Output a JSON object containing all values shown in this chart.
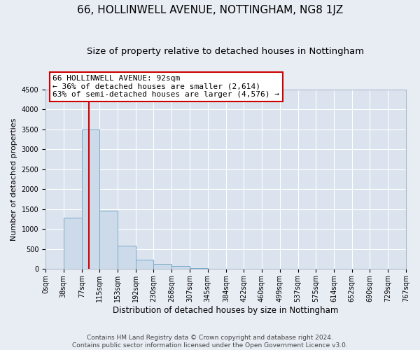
{
  "title": "66, HOLLINWELL AVENUE, NOTTINGHAM, NG8 1JZ",
  "subtitle": "Size of property relative to detached houses in Nottingham",
  "xlabel": "Distribution of detached houses by size in Nottingham",
  "ylabel": "Number of detached properties",
  "bar_edges": [
    0,
    38,
    77,
    115,
    153,
    192,
    230,
    268,
    307,
    345,
    384,
    422,
    460,
    499,
    537,
    575,
    614,
    652,
    690,
    729,
    767
  ],
  "bar_heights": [
    0,
    1280,
    3500,
    1460,
    580,
    240,
    130,
    70,
    25,
    10,
    5,
    2,
    0,
    0,
    0,
    0,
    0,
    0,
    0,
    0
  ],
  "bar_color": "#ccdaea",
  "bar_edgecolor": "#7aaac8",
  "property_size": 92,
  "red_line_color": "#cc0000",
  "annotation_line1": "66 HOLLINWELL AVENUE: 92sqm",
  "annotation_line2": "← 36% of detached houses are smaller (2,614)",
  "annotation_line3": "63% of semi-detached houses are larger (4,576) →",
  "annotation_box_color": "#ffffff",
  "annotation_box_edgecolor": "#cc0000",
  "ylim": [
    0,
    4500
  ],
  "yticks": [
    0,
    500,
    1000,
    1500,
    2000,
    2500,
    3000,
    3500,
    4000,
    4500
  ],
  "tick_labels": [
    "0sqm",
    "38sqm",
    "77sqm",
    "115sqm",
    "153sqm",
    "192sqm",
    "230sqm",
    "268sqm",
    "307sqm",
    "345sqm",
    "384sqm",
    "422sqm",
    "460sqm",
    "499sqm",
    "537sqm",
    "575sqm",
    "614sqm",
    "652sqm",
    "690sqm",
    "729sqm",
    "767sqm"
  ],
  "footer_line1": "Contains HM Land Registry data © Crown copyright and database right 2024.",
  "footer_line2": "Contains public sector information licensed under the Open Government Licence v3.0.",
  "bg_color": "#e8edf4",
  "plot_bg_color": "#dae3ee",
  "grid_color": "#ffffff",
  "title_fontsize": 11,
  "subtitle_fontsize": 9.5,
  "xlabel_fontsize": 8.5,
  "ylabel_fontsize": 8,
  "tick_fontsize": 7,
  "annotation_fontsize": 8,
  "footer_fontsize": 6.5
}
